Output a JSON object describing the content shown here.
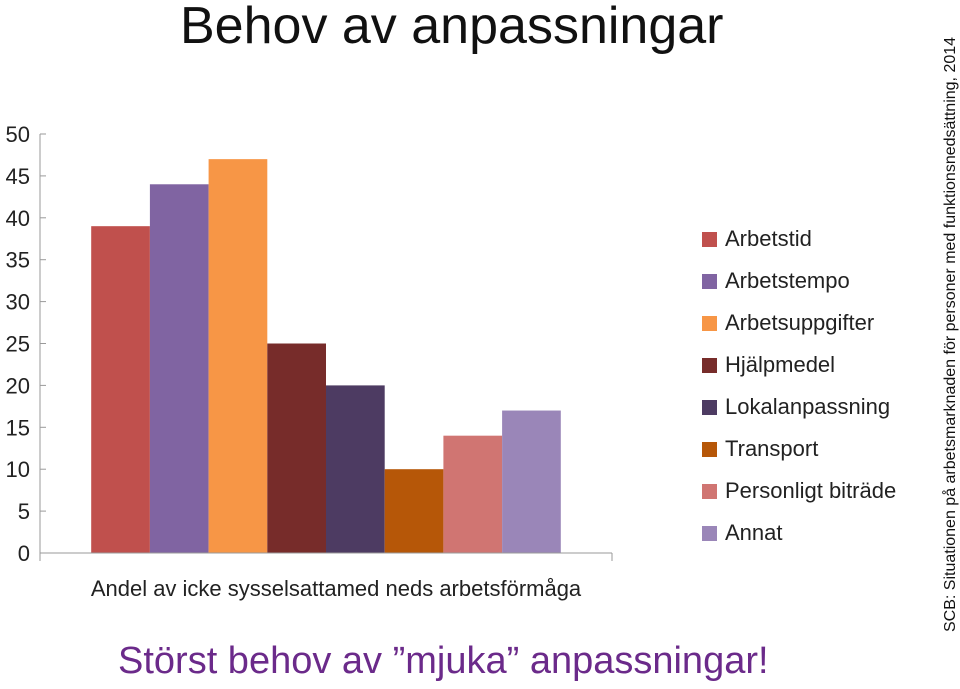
{
  "slide": {
    "title": "Behov av anpassningar",
    "footer": "Störst behov av ”mjuka” anpassningar!",
    "source": "SCB: Situationen på arbetsmarknaden för personer med funktionsnedsättning, 2014"
  },
  "chart_data": {
    "type": "bar",
    "title": "Behov av anpassningar",
    "xlabel": "",
    "ylabel": "",
    "categories": [
      "Andel av icke sysselsattamed neds arbetsförmåga"
    ],
    "ylim": [
      0,
      50
    ],
    "yticks": [
      0,
      5,
      10,
      15,
      20,
      25,
      30,
      35,
      40,
      45,
      50
    ],
    "grid": false,
    "legend_position": "right",
    "series": [
      {
        "name": "Arbetstid",
        "values": [
          39
        ],
        "color": "#C0504D"
      },
      {
        "name": "Arbetstempo",
        "values": [
          44
        ],
        "color": "#8064A2"
      },
      {
        "name": "Arbetsuppgifter",
        "values": [
          47
        ],
        "color": "#F79646"
      },
      {
        "name": "Hjälpmedel",
        "values": [
          25
        ],
        "color": "#772C2A"
      },
      {
        "name": "Lokalanpassning",
        "values": [
          20
        ],
        "color": "#4D3B62"
      },
      {
        "name": "Transport",
        "values": [
          10
        ],
        "color": "#B65708"
      },
      {
        "name": "Personligt biträde",
        "values": [
          14
        ],
        "color": "#D07572"
      },
      {
        "name": "Annat",
        "values": [
          17
        ],
        "color": "#9A86B8"
      }
    ]
  }
}
